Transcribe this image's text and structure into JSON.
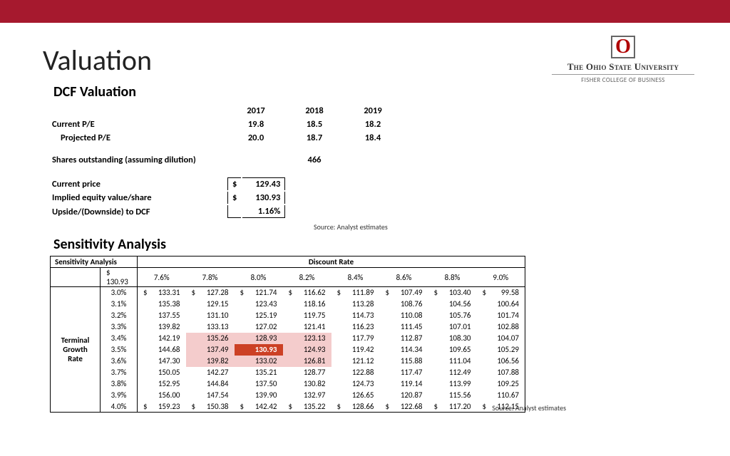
{
  "topbar_color": "#a6192e",
  "logo": {
    "letter": "O",
    "main": "The Ohio State University",
    "sub": "FISHER COLLEGE OF BUSINESS"
  },
  "title": "Valuation",
  "dcf": {
    "heading": "DCF Valuation",
    "years": [
      "2017",
      "2018",
      "2019"
    ],
    "rows": [
      {
        "label": "Current P/E",
        "indent": false,
        "vals": [
          "19.8",
          "18.5",
          "18.2"
        ]
      },
      {
        "label": "Projected P/E",
        "indent": true,
        "vals": [
          "20.0",
          "18.7",
          "18.4"
        ]
      }
    ],
    "shares_label": "Shares outstanding (assuming dilution)",
    "shares_val": "466",
    "pricebox": [
      {
        "label": "Current price",
        "prefix": "$",
        "val": "129.43"
      },
      {
        "label": "Implied equity value/share",
        "prefix": "$",
        "val": "130.93"
      },
      {
        "label": "Upside/(Downside) to DCF",
        "prefix": "",
        "val": "1.16%"
      }
    ],
    "source": "Source: Analyst estimates"
  },
  "sens": {
    "heading": "Sensitivity Analysis",
    "corner": "Sensitivity Analysis",
    "discount_label": "Discount Rate",
    "terminal_label": "Terminal Growth Rate",
    "pivot": "130.93",
    "cols": [
      "7.6%",
      "7.8%",
      "8.0%",
      "8.2%",
      "8.4%",
      "8.6%",
      "8.8%",
      "9.0%"
    ],
    "rows": [
      "3.0%",
      "3.1%",
      "3.2%",
      "3.3%",
      "3.4%",
      "3.5%",
      "3.6%",
      "3.7%",
      "3.8%",
      "3.9%",
      "4.0%"
    ],
    "data": [
      [
        "133.31",
        "127.28",
        "121.74",
        "116.62",
        "111.89",
        "107.49",
        "103.40",
        "99.58"
      ],
      [
        "135.38",
        "129.15",
        "123.43",
        "118.16",
        "113.28",
        "108.76",
        "104.56",
        "100.64"
      ],
      [
        "137.55",
        "131.10",
        "125.19",
        "119.75",
        "114.73",
        "110.08",
        "105.76",
        "101.74"
      ],
      [
        "139.82",
        "133.13",
        "127.02",
        "121.41",
        "116.23",
        "111.45",
        "107.01",
        "102.88"
      ],
      [
        "142.19",
        "135.26",
        "128.93",
        "123.13",
        "117.79",
        "112.87",
        "108.30",
        "104.07"
      ],
      [
        "144.68",
        "137.49",
        "130.93",
        "124.93",
        "119.42",
        "114.34",
        "109.65",
        "105.29"
      ],
      [
        "147.30",
        "139.82",
        "133.02",
        "126.81",
        "121.12",
        "115.88",
        "111.04",
        "106.56"
      ],
      [
        "150.05",
        "142.27",
        "135.21",
        "128.77",
        "122.88",
        "117.47",
        "112.49",
        "107.88"
      ],
      [
        "152.95",
        "144.84",
        "137.50",
        "130.82",
        "124.73",
        "119.14",
        "113.99",
        "109.25"
      ],
      [
        "156.00",
        "147.54",
        "139.90",
        "132.97",
        "126.65",
        "120.87",
        "115.56",
        "110.67"
      ],
      [
        "159.23",
        "150.38",
        "142.42",
        "135.22",
        "128.66",
        "122.68",
        "117.20",
        "112.15"
      ]
    ],
    "highlight_light": [
      [
        4,
        1
      ],
      [
        4,
        2
      ],
      [
        4,
        3
      ],
      [
        5,
        1
      ],
      [
        5,
        3
      ],
      [
        6,
        1
      ],
      [
        6,
        2
      ],
      [
        6,
        3
      ]
    ],
    "highlight_dark": [
      [
        5,
        2
      ]
    ],
    "dollar_rows": [
      0,
      10
    ],
    "source": "Source: Analyst estimates"
  }
}
